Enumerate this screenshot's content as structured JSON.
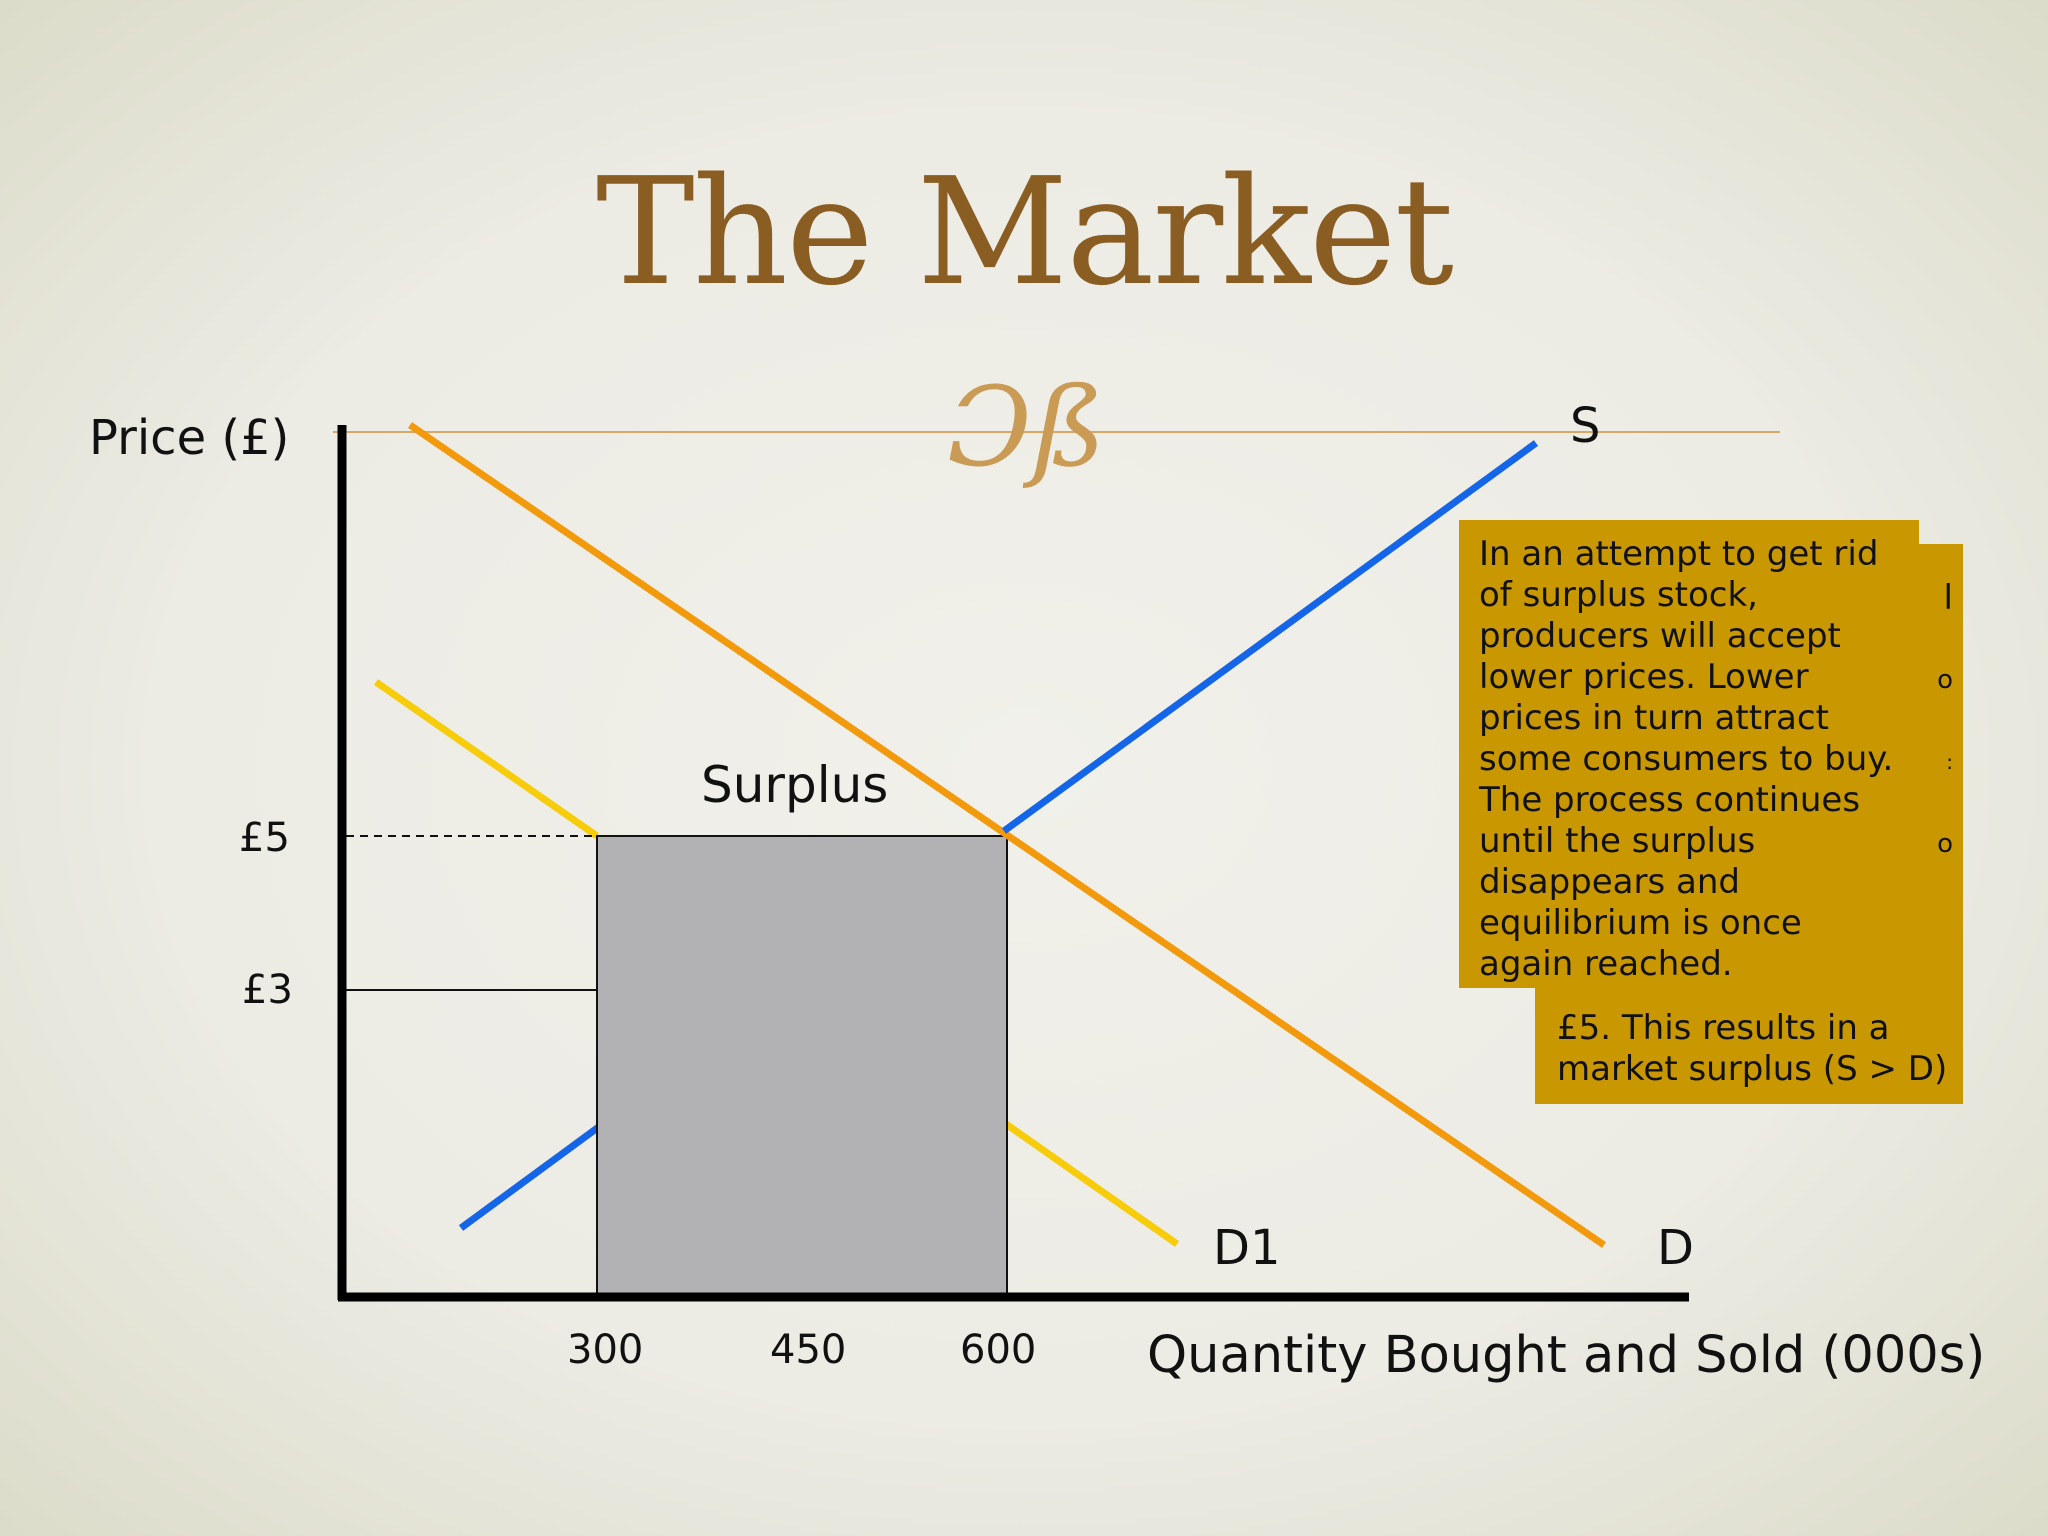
{
  "slide": {
    "title": "The Market",
    "ornament": "Ɔß"
  },
  "chart_labels": {
    "y_axis": "Price (£)",
    "x_axis": "Quantity Bought and Sold (000s)",
    "price_ticks": [
      "£5",
      "£3"
    ],
    "quantity_ticks": [
      "300",
      "450",
      "600"
    ],
    "curve_s": "S",
    "curve_d": "D",
    "curve_d1": "D1",
    "region": "Surplus"
  },
  "notes": {
    "back_visible": "£5. This results in a market surplus (S > D)",
    "back_edge_fragments": [
      "l",
      "o",
      ":",
      "o"
    ],
    "front": "In an attempt to get rid of surplus stock, producers will accept lower prices. Lower prices in turn attract some consumers to buy. The process continues until the surplus disappears and equilibrium is once again reached."
  },
  "colors": {
    "title": "#8a5d22",
    "supply": "#1565e8",
    "demand": "#f39a0c",
    "demand_new": "#f7cc0a",
    "surplus_box": "#b2b1b4",
    "note_bg": "#c99800",
    "axis": "#000000"
  }
}
